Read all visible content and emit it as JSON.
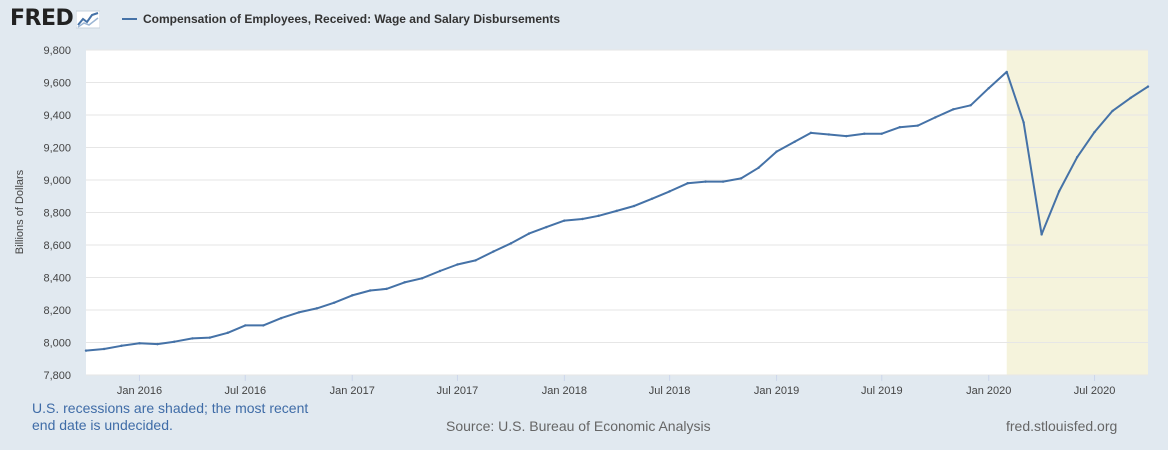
{
  "header": {
    "logo_text": "FRED",
    "logo_icon": "trend-graph-icon",
    "legend_label": "Compensation of Employees, Received: Wage and Salary Disbursements",
    "series_color": "#4572a7"
  },
  "footer": {
    "note": "U.S. recessions are shaded; the most recent end date is undecided.",
    "source": "Source: U.S. Bureau of Economic Analysis",
    "site": "fred.stlouisfed.org"
  },
  "chart_data": {
    "type": "line",
    "ylabel": "Billions of Dollars",
    "ylim": [
      7800,
      9800
    ],
    "yticks": [
      7800,
      8000,
      8200,
      8400,
      8600,
      8800,
      9000,
      9200,
      9400,
      9600,
      9800
    ],
    "ytick_labels": [
      "7,800",
      "8,000",
      "8,200",
      "8,400",
      "8,600",
      "8,800",
      "9,000",
      "9,200",
      "9,400",
      "9,600",
      "9,800"
    ],
    "xlim": [
      "2015-10-01",
      "2020-10-01"
    ],
    "xticks": [
      {
        "label": "Jan 2016",
        "date": "2016-01-01"
      },
      {
        "label": "Jul 2016",
        "date": "2016-07-01"
      },
      {
        "label": "Jan 2017",
        "date": "2017-01-01"
      },
      {
        "label": "Jul 2017",
        "date": "2017-07-01"
      },
      {
        "label": "Jan 2018",
        "date": "2018-01-01"
      },
      {
        "label": "Jul 2018",
        "date": "2018-07-01"
      },
      {
        "label": "Jan 2019",
        "date": "2019-01-01"
      },
      {
        "label": "Jul 2019",
        "date": "2019-07-01"
      },
      {
        "label": "Jan 2020",
        "date": "2020-01-01"
      },
      {
        "label": "Jul 2020",
        "date": "2020-07-01"
      }
    ],
    "grid": true,
    "recession_shading": {
      "start": "2020-02-01",
      "end": "2020-10-01",
      "color": "#f5f3dc"
    },
    "series": [
      {
        "name": "Compensation of Employees, Received: Wage and Salary Disbursements",
        "color": "#4572a7",
        "x": [
          "2015-10-01",
          "2015-11-01",
          "2015-12-01",
          "2016-01-01",
          "2016-02-01",
          "2016-03-01",
          "2016-04-01",
          "2016-05-01",
          "2016-06-01",
          "2016-07-01",
          "2016-08-01",
          "2016-09-01",
          "2016-10-01",
          "2016-11-01",
          "2016-12-01",
          "2017-01-01",
          "2017-02-01",
          "2017-03-01",
          "2017-04-01",
          "2017-05-01",
          "2017-06-01",
          "2017-07-01",
          "2017-08-01",
          "2017-09-01",
          "2017-10-01",
          "2017-11-01",
          "2017-12-01",
          "2018-01-01",
          "2018-02-01",
          "2018-03-01",
          "2018-04-01",
          "2018-05-01",
          "2018-06-01",
          "2018-07-01",
          "2018-08-01",
          "2018-09-01",
          "2018-10-01",
          "2018-11-01",
          "2018-12-01",
          "2019-01-01",
          "2019-02-01",
          "2019-03-01",
          "2019-04-01",
          "2019-05-01",
          "2019-06-01",
          "2019-07-01",
          "2019-08-01",
          "2019-09-01",
          "2019-10-01",
          "2019-11-01",
          "2019-12-01",
          "2020-01-01",
          "2020-02-01",
          "2020-03-01",
          "2020-04-01",
          "2020-05-01",
          "2020-06-01",
          "2020-07-01",
          "2020-08-01",
          "2020-09-01",
          "2020-10-01"
        ],
        "values": [
          7950,
          7960,
          7980,
          7995,
          7990,
          8005,
          8025,
          8030,
          8060,
          8105,
          8105,
          8150,
          8185,
          8210,
          8245,
          8290,
          8320,
          8330,
          8370,
          8395,
          8440,
          8480,
          8505,
          8560,
          8610,
          8670,
          8710,
          8750,
          8760,
          8780,
          8810,
          8840,
          8885,
          8930,
          8980,
          8990,
          8990,
          9010,
          9075,
          9175,
          9235,
          9290,
          9280,
          9270,
          9285,
          9285,
          9325,
          9335,
          9385,
          9435,
          9460,
          9565,
          9665,
          9355,
          8665,
          8930,
          9140,
          9295,
          9425,
          9505,
          9575
        ]
      }
    ]
  }
}
